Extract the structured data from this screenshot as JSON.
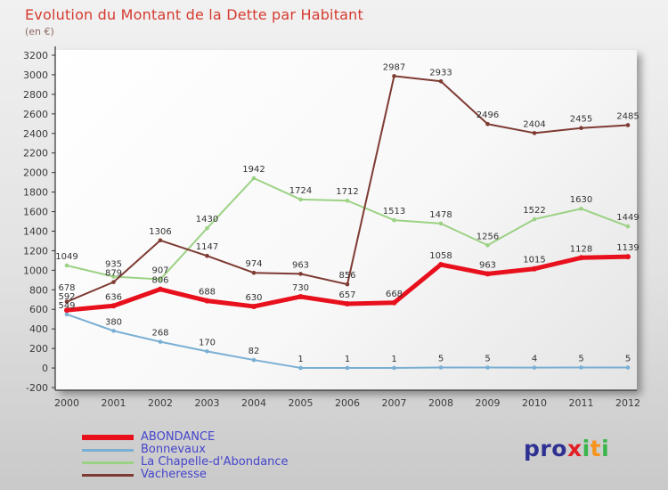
{
  "title": "Evolution du Montant de la Dette par Habitant",
  "subtitle": "(en €)",
  "colors": {
    "title": "#d53a2f",
    "subtitle": "#8a6560",
    "legend_text": "#4545cc",
    "axis": "#333333",
    "tick_text": "#3a3a3a",
    "value_label": "#333333"
  },
  "chart_data": {
    "type": "line",
    "title": "Evolution du Montant de la Dette par Habitant",
    "xlabel": "",
    "ylabel": "en €",
    "x": [
      2000,
      2001,
      2002,
      2003,
      2004,
      2005,
      2006,
      2007,
      2008,
      2009,
      2010,
      2011,
      2012
    ],
    "ylim": [
      -200,
      3200
    ],
    "ytick_step": 200,
    "grid": false,
    "legend_position": "bottom-left",
    "series": [
      {
        "name": "ABONDANCE",
        "color": "#e8101c",
        "line_width": 5,
        "values": [
          592,
          636,
          806,
          688,
          630,
          730,
          657,
          668,
          1058,
          963,
          1015,
          1128,
          1139
        ]
      },
      {
        "name": "Bonnevaux",
        "color": "#7aafd4",
        "line_width": 2,
        "values": [
          549,
          380,
          268,
          170,
          82,
          1,
          1,
          1,
          5,
          5,
          4,
          5,
          5
        ]
      },
      {
        "name": "La Chapelle-d'Abondance",
        "color": "#9cd284",
        "line_width": 2,
        "values": [
          1049,
          935,
          907,
          1430,
          1942,
          1724,
          1712,
          1513,
          1478,
          1256,
          1522,
          1630,
          1449
        ]
      },
      {
        "name": "Vacheresse",
        "color": "#7e3b33",
        "line_width": 2,
        "values": [
          678,
          879,
          1306,
          1147,
          974,
          963,
          856,
          2987,
          2933,
          2496,
          2404,
          2455,
          2485
        ]
      }
    ]
  },
  "logo": {
    "text": "proxiti",
    "letters": [
      {
        "char": "p",
        "color": "#2e3192"
      },
      {
        "char": "r",
        "color": "#2e3192"
      },
      {
        "char": "o",
        "color": "#2e3192"
      },
      {
        "char": "x",
        "color": "#e31e24"
      },
      {
        "char": "i",
        "color": "#39b54a"
      },
      {
        "char": "t",
        "color": "#f7941d"
      },
      {
        "char": "i",
        "color": "#39b54a"
      }
    ]
  }
}
